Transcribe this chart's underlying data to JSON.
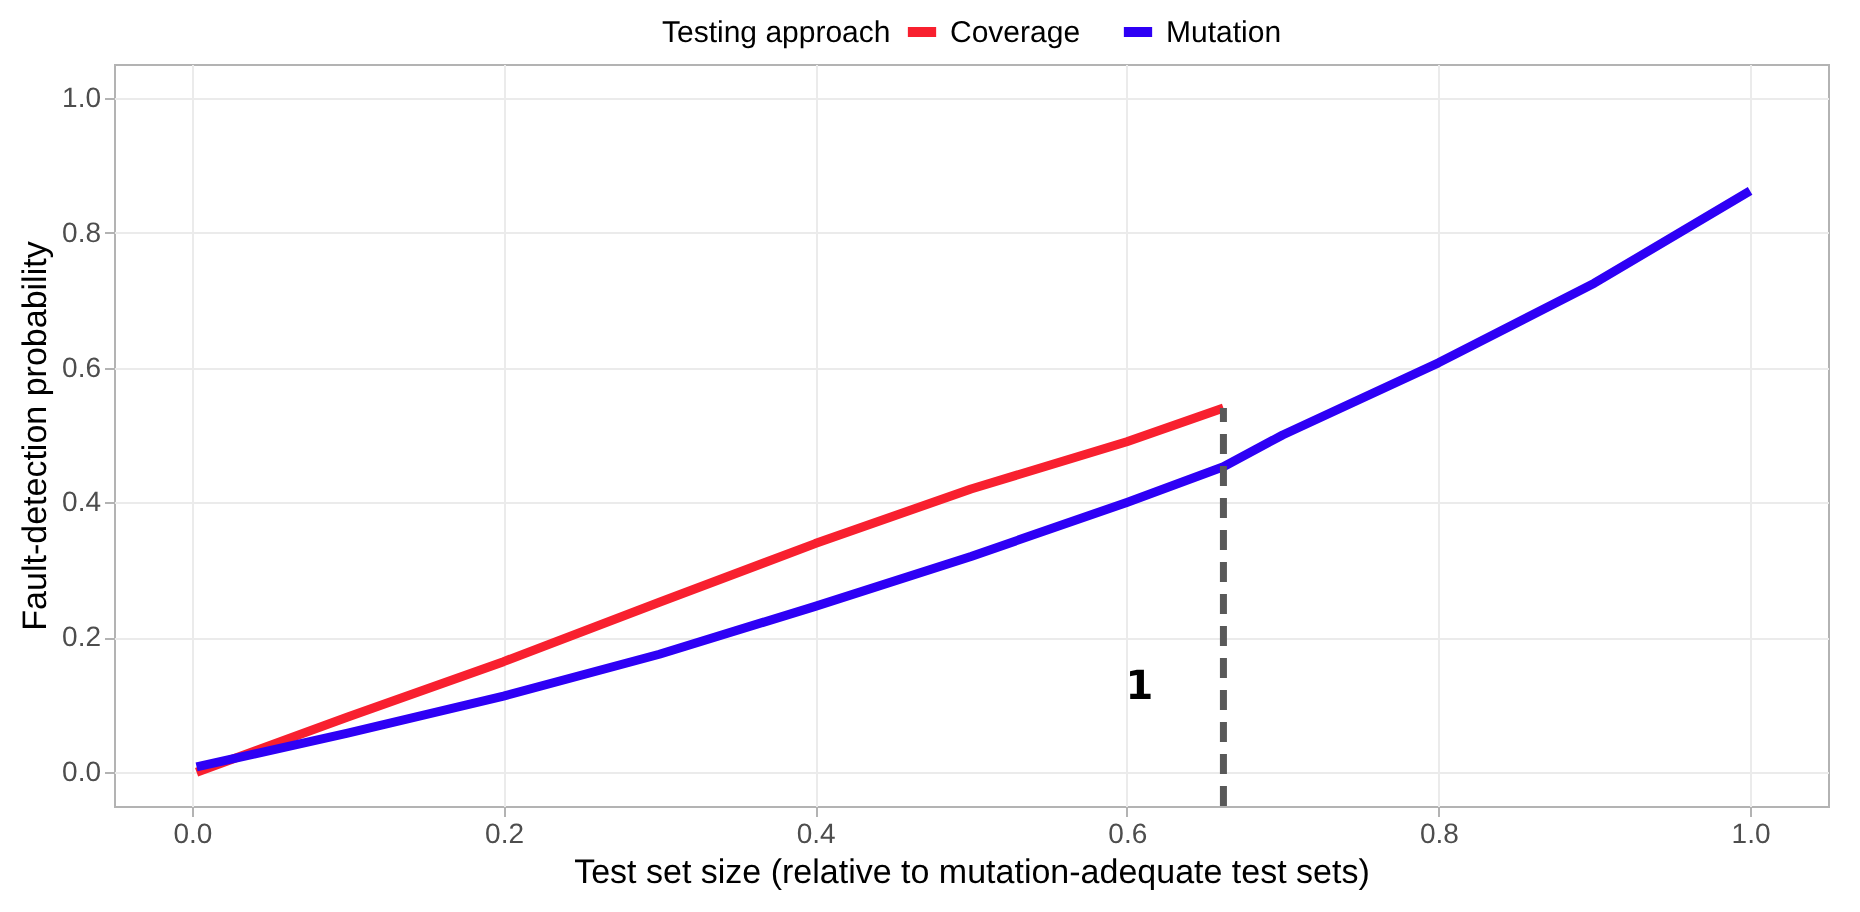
{
  "chart_data": {
    "type": "line",
    "xlabel": "Test set size (relative to mutation-adequate test sets)",
    "ylabel": "Fault-detection probability",
    "legend_title": "Testing approach",
    "legend": "top",
    "grid": true,
    "marker": "none",
    "xlim": [
      -0.05,
      1.05
    ],
    "ylim": [
      -0.05,
      1.05
    ],
    "xticks": [
      {
        "value": 0,
        "label": "0.0"
      },
      {
        "value": 0.2,
        "label": "0.2"
      },
      {
        "value": 0.4,
        "label": "0.4"
      },
      {
        "value": 0.6,
        "label": "0.6"
      },
      {
        "value": 0.8,
        "label": "0.8"
      },
      {
        "value": 1,
        "label": "1.0"
      }
    ],
    "yticks": [
      {
        "value": 0,
        "label": "0.0"
      },
      {
        "value": 0.2,
        "label": "0.2"
      },
      {
        "value": 0.4,
        "label": "0.4"
      },
      {
        "value": 0.6,
        "label": "0.6"
      },
      {
        "value": 0.8,
        "label": "0.8"
      },
      {
        "value": 1,
        "label": "1.0"
      }
    ],
    "series": [
      {
        "name": "Coverage",
        "color": "#f8202f",
        "line_style": "solid",
        "x": [
          0.003,
          0.1,
          0.2,
          0.3,
          0.4,
          0.5,
          0.6,
          0.662
        ],
        "values": [
          0.0,
          0.082,
          0.164,
          0.252,
          0.339,
          0.42,
          0.49,
          0.54
        ]
      },
      {
        "name": "Mutation",
        "color": "#2e00f5",
        "line_style": "solid",
        "x": [
          0.003,
          0.1,
          0.2,
          0.3,
          0.4,
          0.5,
          0.6,
          0.662,
          0.7,
          0.8,
          0.9,
          1.0
        ],
        "values": [
          0.008,
          0.058,
          0.113,
          0.175,
          0.246,
          0.32,
          0.4,
          0.453,
          0.5,
          0.607,
          0.725,
          0.862
        ]
      },
      {
        "color": "#595959",
        "line_style": "dashed",
        "x": [
          0.662,
          0.662
        ],
        "values": [
          -0.05,
          0.54
        ]
      }
    ],
    "annotations": [
      "1"
    ]
  }
}
